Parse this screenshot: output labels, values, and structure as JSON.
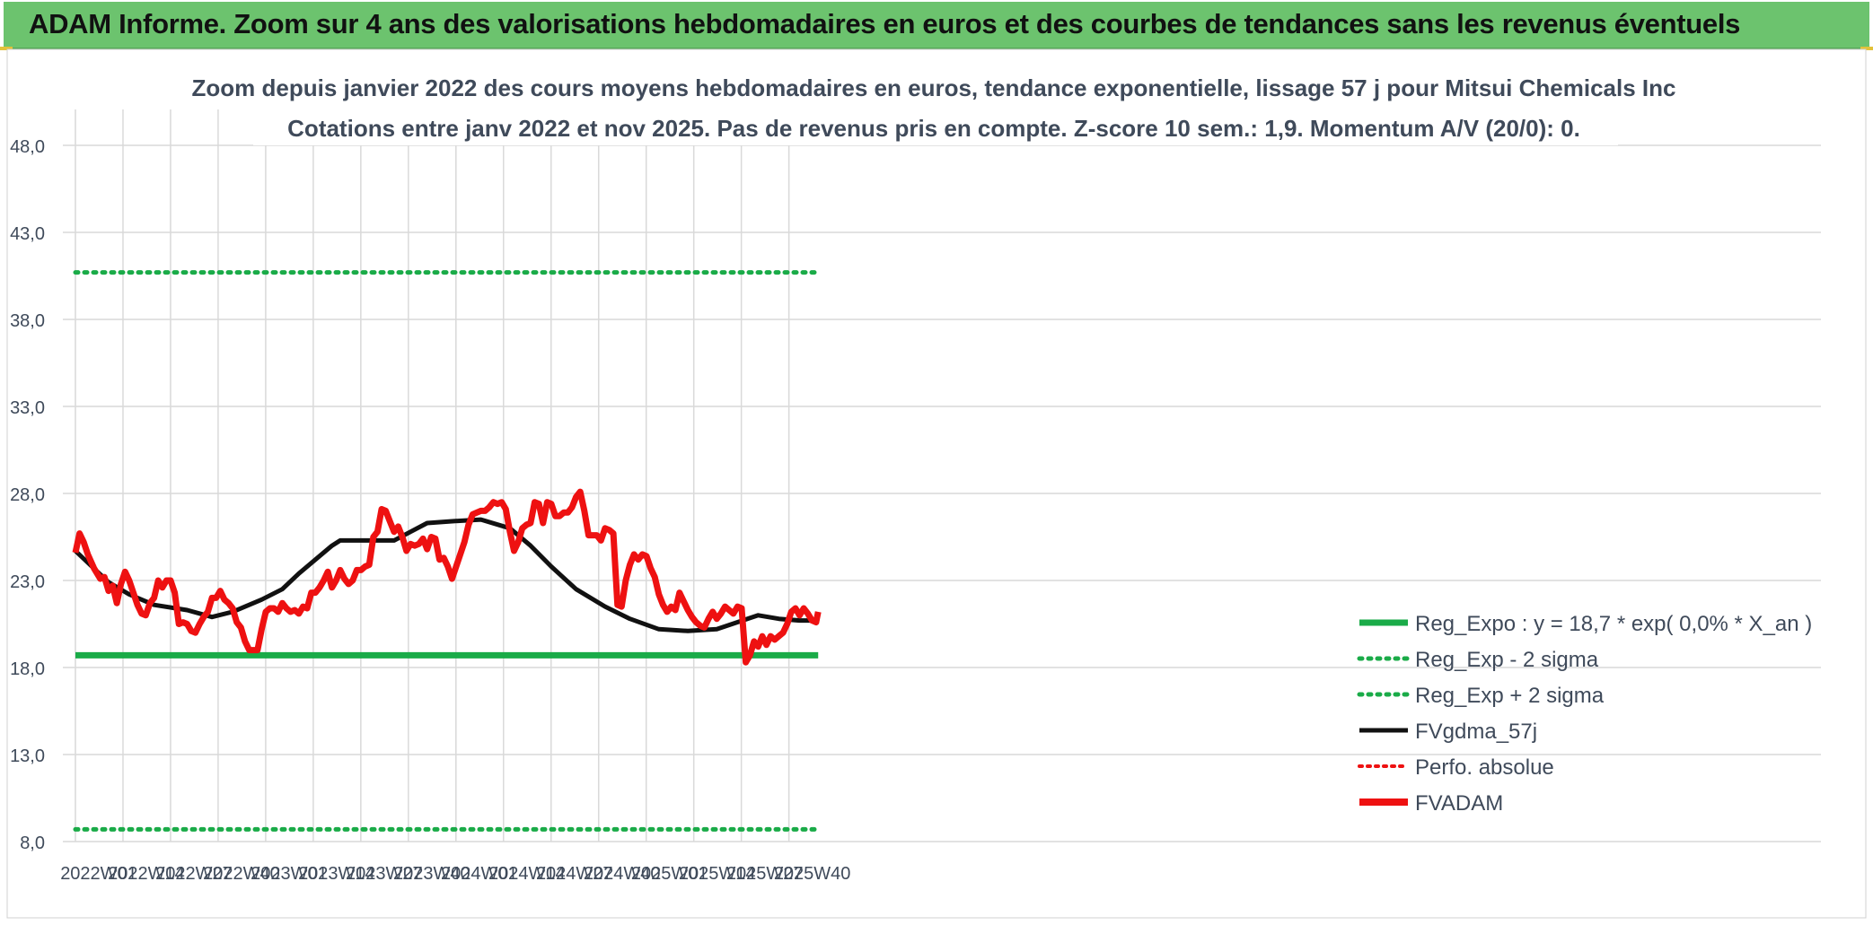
{
  "banner": {
    "title": "ADAM Informe. Zoom sur 4 ans des valorisations hebdomadaires en euros et des courbes de tendances sans les revenus éventuels"
  },
  "colors": {
    "banner": "#6cc36e",
    "green": "#1aab48",
    "red": "#ee1111",
    "black": "#111111",
    "grid": "#d9d9d9",
    "text": "#3f4a5a"
  },
  "chart_data": {
    "type": "line",
    "title_line1": "Zoom depuis janvier 2022 des cours moyens hebdomadaires en euros, tendance exponentielle, lissage 57 j pour Mitsui Chemicals Inc",
    "title_line2": "Cotations entre janv 2022 et nov 2025. Pas de revenus pris en compte. Z-score 10 sem.: 1,9. Momentum A/V (20/0): 0.",
    "ylim": [
      8,
      48
    ],
    "y_ticks": [
      "8,0",
      "13,0",
      "18,0",
      "23,0",
      "28,0",
      "33,0",
      "38,0",
      "43,0",
      "48,0"
    ],
    "x_tick_labels": [
      "2022W01",
      "2022W14",
      "2022W27",
      "2022W40",
      "2023W01",
      "2023W14",
      "2023W27",
      "2023W40",
      "2024W01",
      "2024W14",
      "2024W27",
      "2024W40",
      "2025W01",
      "2025W14",
      "2025W27",
      "2025W40"
    ],
    "week_count": 203,
    "reg_exp": {
      "name": "Reg_Expo : y = 18,7 * exp( 0,0% * X_an )",
      "value": 18.7
    },
    "minus_2_sigma": {
      "name": "Reg_Exp - 2 sigma",
      "value": 8.7
    },
    "plus_2_sigma": {
      "name": "Reg_Exp + 2 sigma",
      "value": 40.7
    },
    "perfo": {
      "name": "Perfo. absolue"
    },
    "fvgdma": {
      "name": "FVgdma_57j",
      "points": [
        [
          0,
          24.7
        ],
        [
          8,
          23.8
        ],
        [
          16,
          22.9
        ],
        [
          26,
          22.2
        ],
        [
          38,
          21.6
        ],
        [
          54,
          21.3
        ],
        [
          66,
          20.9
        ],
        [
          76,
          21.2
        ],
        [
          90,
          21.9
        ],
        [
          100,
          22.5
        ],
        [
          108,
          23.4
        ],
        [
          116,
          24.2
        ],
        [
          124,
          25.0
        ],
        [
          128,
          25.3
        ],
        [
          140,
          25.3
        ],
        [
          154,
          25.3
        ],
        [
          162,
          25.8
        ],
        [
          170,
          26.3
        ],
        [
          182,
          26.4
        ],
        [
          196,
          26.5
        ],
        [
          210,
          26.0
        ],
        [
          220,
          25.0
        ],
        [
          230,
          23.8
        ],
        [
          242,
          22.5
        ],
        [
          256,
          21.5
        ],
        [
          268,
          20.8
        ],
        [
          282,
          20.2
        ],
        [
          296,
          20.1
        ],
        [
          310,
          20.2
        ],
        [
          330,
          21.0
        ],
        [
          340,
          20.8
        ],
        [
          350,
          20.7
        ],
        [
          359,
          20.7
        ]
      ]
    },
    "fvadam": {
      "name": "FVADAM",
      "points": [
        [
          0,
          24.6
        ],
        [
          2,
          25.7
        ],
        [
          4,
          25.2
        ],
        [
          6,
          24.5
        ],
        [
          9,
          23.7
        ],
        [
          12,
          23.1
        ],
        [
          14,
          23.2
        ],
        [
          16,
          22.4
        ],
        [
          18,
          22.7
        ],
        [
          20,
          21.7
        ],
        [
          22,
          22.8
        ],
        [
          24,
          23.5
        ],
        [
          26,
          23.0
        ],
        [
          28,
          22.3
        ],
        [
          30,
          21.6
        ],
        [
          32,
          21.1
        ],
        [
          34,
          21.0
        ],
        [
          36,
          21.7
        ],
        [
          38,
          22.0
        ],
        [
          40,
          23.0
        ],
        [
          42,
          22.6
        ],
        [
          44,
          23.0
        ],
        [
          46,
          23.0
        ],
        [
          48,
          22.3
        ],
        [
          50,
          20.5
        ],
        [
          52,
          20.6
        ],
        [
          54,
          20.5
        ],
        [
          56,
          20.1
        ],
        [
          58,
          20.0
        ],
        [
          60,
          20.5
        ],
        [
          62,
          20.9
        ],
        [
          64,
          21.2
        ],
        [
          66,
          22.0
        ],
        [
          68,
          22.0
        ],
        [
          70,
          22.4
        ],
        [
          72,
          21.9
        ],
        [
          74,
          21.7
        ],
        [
          76,
          21.4
        ],
        [
          78,
          20.6
        ],
        [
          80,
          20.3
        ],
        [
          82,
          19.5
        ],
        [
          84,
          19.0
        ],
        [
          86,
          19.0
        ],
        [
          88,
          19.0
        ],
        [
          90,
          20.2
        ],
        [
          92,
          21.2
        ],
        [
          94,
          21.4
        ],
        [
          96,
          21.4
        ],
        [
          98,
          21.2
        ],
        [
          100,
          21.7
        ],
        [
          102,
          21.4
        ],
        [
          104,
          21.2
        ],
        [
          106,
          21.3
        ],
        [
          108,
          21.1
        ],
        [
          110,
          21.5
        ],
        [
          112,
          21.4
        ],
        [
          114,
          22.3
        ],
        [
          116,
          22.3
        ],
        [
          118,
          22.6
        ],
        [
          120,
          23.0
        ],
        [
          122,
          23.5
        ],
        [
          124,
          22.6
        ],
        [
          126,
          23.0
        ],
        [
          128,
          23.6
        ],
        [
          130,
          23.1
        ],
        [
          132,
          22.8
        ],
        [
          134,
          23.0
        ],
        [
          136,
          23.6
        ],
        [
          138,
          23.6
        ],
        [
          140,
          23.8
        ],
        [
          142,
          23.9
        ],
        [
          144,
          25.5
        ],
        [
          146,
          25.8
        ],
        [
          148,
          27.1
        ],
        [
          150,
          27.0
        ],
        [
          152,
          26.4
        ],
        [
          154,
          25.8
        ],
        [
          156,
          26.1
        ],
        [
          158,
          25.5
        ],
        [
          160,
          24.7
        ],
        [
          162,
          25.1
        ],
        [
          164,
          25.0
        ],
        [
          166,
          25.1
        ],
        [
          168,
          25.4
        ],
        [
          170,
          24.8
        ],
        [
          172,
          25.5
        ],
        [
          174,
          25.4
        ],
        [
          176,
          24.2
        ],
        [
          178,
          24.3
        ],
        [
          180,
          23.8
        ],
        [
          182,
          23.1
        ],
        [
          184,
          23.8
        ],
        [
          186,
          24.5
        ],
        [
          188,
          25.2
        ],
        [
          190,
          26.2
        ],
        [
          192,
          26.8
        ],
        [
          194,
          26.9
        ],
        [
          196,
          27.0
        ],
        [
          198,
          27.0
        ],
        [
          200,
          27.2
        ],
        [
          202,
          27.5
        ],
        [
          204,
          27.4
        ],
        [
          206,
          27.5
        ],
        [
          208,
          27.1
        ],
        [
          210,
          25.8
        ],
        [
          212,
          24.7
        ],
        [
          214,
          25.2
        ],
        [
          216,
          26.0
        ],
        [
          218,
          26.2
        ],
        [
          220,
          26.3
        ],
        [
          222,
          27.5
        ],
        [
          224,
          27.4
        ],
        [
          226,
          26.3
        ],
        [
          228,
          27.5
        ],
        [
          230,
          27.4
        ],
        [
          232,
          26.7
        ],
        [
          234,
          26.7
        ],
        [
          236,
          26.9
        ],
        [
          238,
          26.9
        ],
        [
          240,
          27.2
        ],
        [
          242,
          27.8
        ],
        [
          244,
          28.1
        ],
        [
          246,
          27.0
        ],
        [
          248,
          25.6
        ],
        [
          250,
          25.6
        ],
        [
          252,
          25.6
        ],
        [
          254,
          25.3
        ],
        [
          256,
          26.0
        ],
        [
          258,
          25.9
        ],
        [
          260,
          25.7
        ],
        [
          262,
          21.6
        ],
        [
          264,
          21.5
        ],
        [
          266,
          23.0
        ],
        [
          268,
          23.9
        ],
        [
          270,
          24.5
        ],
        [
          272,
          24.2
        ],
        [
          274,
          24.5
        ],
        [
          276,
          24.4
        ],
        [
          278,
          23.7
        ],
        [
          280,
          23.2
        ],
        [
          282,
          22.2
        ],
        [
          284,
          21.6
        ],
        [
          286,
          21.2
        ],
        [
          288,
          21.5
        ],
        [
          290,
          21.3
        ],
        [
          292,
          22.3
        ],
        [
          294,
          21.8
        ],
        [
          296,
          21.3
        ],
        [
          298,
          20.9
        ],
        [
          300,
          20.6
        ],
        [
          302,
          20.4
        ],
        [
          304,
          20.3
        ],
        [
          306,
          20.8
        ],
        [
          308,
          21.2
        ],
        [
          310,
          20.8
        ],
        [
          312,
          21.1
        ],
        [
          314,
          21.5
        ],
        [
          316,
          21.3
        ],
        [
          318,
          21.1
        ],
        [
          320,
          21.5
        ],
        [
          322,
          21.4
        ],
        [
          324,
          18.3
        ],
        [
          326,
          18.7
        ],
        [
          328,
          19.5
        ],
        [
          330,
          19.2
        ],
        [
          332,
          19.8
        ],
        [
          334,
          19.3
        ],
        [
          336,
          19.8
        ],
        [
          338,
          19.6
        ],
        [
          340,
          19.8
        ],
        [
          342,
          20.0
        ],
        [
          344,
          20.5
        ],
        [
          346,
          21.2
        ],
        [
          348,
          21.4
        ],
        [
          350,
          21.0
        ],
        [
          352,
          21.4
        ],
        [
          354,
          21.1
        ],
        [
          356,
          20.7
        ],
        [
          358,
          20.6
        ],
        [
          359,
          21.2
        ]
      ]
    }
  }
}
